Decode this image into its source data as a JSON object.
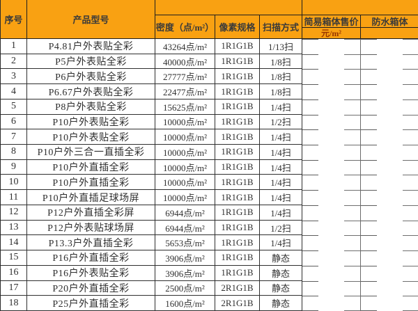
{
  "table": {
    "headers": {
      "col_index": "序号",
      "col_product": "产品型号",
      "col_density": "密度（点/m²）",
      "col_pixel": "像素规格",
      "col_scan": "扫描方式",
      "col_simple_price": "简易箱体售价",
      "col_simple_price_unit": "元/m²",
      "col_waterproof": "防水箱体"
    },
    "rows": [
      {
        "no": "1",
        "model": "P4.81户外表贴全彩",
        "density": "43264点/m²",
        "pixel": "1R1G1B",
        "scan": "1/13扫",
        "simple_price": "",
        "waterproof": ""
      },
      {
        "no": "2",
        "model": "P5户外表贴全彩",
        "density": "40000点/m²",
        "pixel": "1R1G1B",
        "scan": "1/8扫",
        "simple_price": "",
        "waterproof": ""
      },
      {
        "no": "3",
        "model": "P6户外表贴全彩",
        "density": "27777点/m²",
        "pixel": "1R1G1B",
        "scan": "1/8扫",
        "simple_price": "",
        "waterproof": ""
      },
      {
        "no": "4",
        "model": "P6.67户外表贴全彩",
        "density": "22477点/m²",
        "pixel": "1R1G1B",
        "scan": "1/8扫",
        "simple_price": "",
        "waterproof": ""
      },
      {
        "no": "5",
        "model": "P8户外表贴全彩",
        "density": "15625点/m²",
        "pixel": "1R1G1B",
        "scan": "1/4扫",
        "simple_price": "",
        "waterproof": ""
      },
      {
        "no": "6",
        "model": "P10户外表贴全彩",
        "density": "10000点/m²",
        "pixel": "1R1G1B",
        "scan": "1/2扫",
        "simple_price": "",
        "waterproof": ""
      },
      {
        "no": "7",
        "model": "P10户外表贴全彩",
        "density": "10000点/m²",
        "pixel": "1R1G1B",
        "scan": "1/4扫",
        "simple_price": "",
        "waterproof": ""
      },
      {
        "no": "8",
        "model": "P10户外三合一直插全彩",
        "density": "10000点/m²",
        "pixel": "1R1G1B",
        "scan": "1/4扫",
        "simple_price": "",
        "waterproof": ""
      },
      {
        "no": "9",
        "model": "P10户外直插全彩",
        "density": "10000点/m²",
        "pixel": "1R1G1B",
        "scan": "1/4扫",
        "simple_price": "",
        "waterproof": ""
      },
      {
        "no": "10",
        "model": "P10户外直插全彩",
        "density": "10000点/m²",
        "pixel": "1R1G1B",
        "scan": "1/4扫",
        "simple_price": "",
        "waterproof": ""
      },
      {
        "no": "11",
        "model": "P10户外直插足球场屏",
        "density": "10000点/m²",
        "pixel": "1R1G1B",
        "scan": "1/4扫",
        "simple_price": "",
        "waterproof": ""
      },
      {
        "no": "12",
        "model": "P12户外直插全彩屏",
        "density": "6944点/m²",
        "pixel": "1R1G1B",
        "scan": "1/4扫",
        "simple_price": "",
        "waterproof": ""
      },
      {
        "no": "13",
        "model": "P12户外表贴球场屏",
        "density": "6944点/m²",
        "pixel": "1R1G1B",
        "scan": "1/2扫",
        "simple_price": "",
        "waterproof": ""
      },
      {
        "no": "14",
        "model": "P13.3户外直插全彩",
        "density": "5653点/m²",
        "pixel": "1R1G1B",
        "scan": "1/4扫",
        "simple_price": "",
        "waterproof": ""
      },
      {
        "no": "15",
        "model": "P16户外直插全彩",
        "density": "3906点/m²",
        "pixel": "1R1G1B",
        "scan": "静态",
        "simple_price": "",
        "waterproof": ""
      },
      {
        "no": "16",
        "model": "P16户外表贴全彩",
        "density": "3906点/m²",
        "pixel": "1R1G1B",
        "scan": "静态",
        "simple_price": "",
        "waterproof": ""
      },
      {
        "no": "17",
        "model": "P20户外直插全彩",
        "density": "2500点/m²",
        "pixel": "2R1G1B",
        "scan": "静态",
        "simple_price": "",
        "waterproof": ""
      },
      {
        "no": "18",
        "model": "P25户外直插全彩",
        "density": "1600点/m²",
        "pixel": "2R1G1B",
        "scan": "静态",
        "simple_price": "",
        "waterproof": ""
      }
    ]
  },
  "colors": {
    "header_bg": "#F9A112",
    "header_text": "#3a3a3a",
    "unit_text": "#973500",
    "grid_line": "#2e2e2e",
    "faded_line": "#6a6a6a",
    "body_text": "#2f2f2f"
  }
}
